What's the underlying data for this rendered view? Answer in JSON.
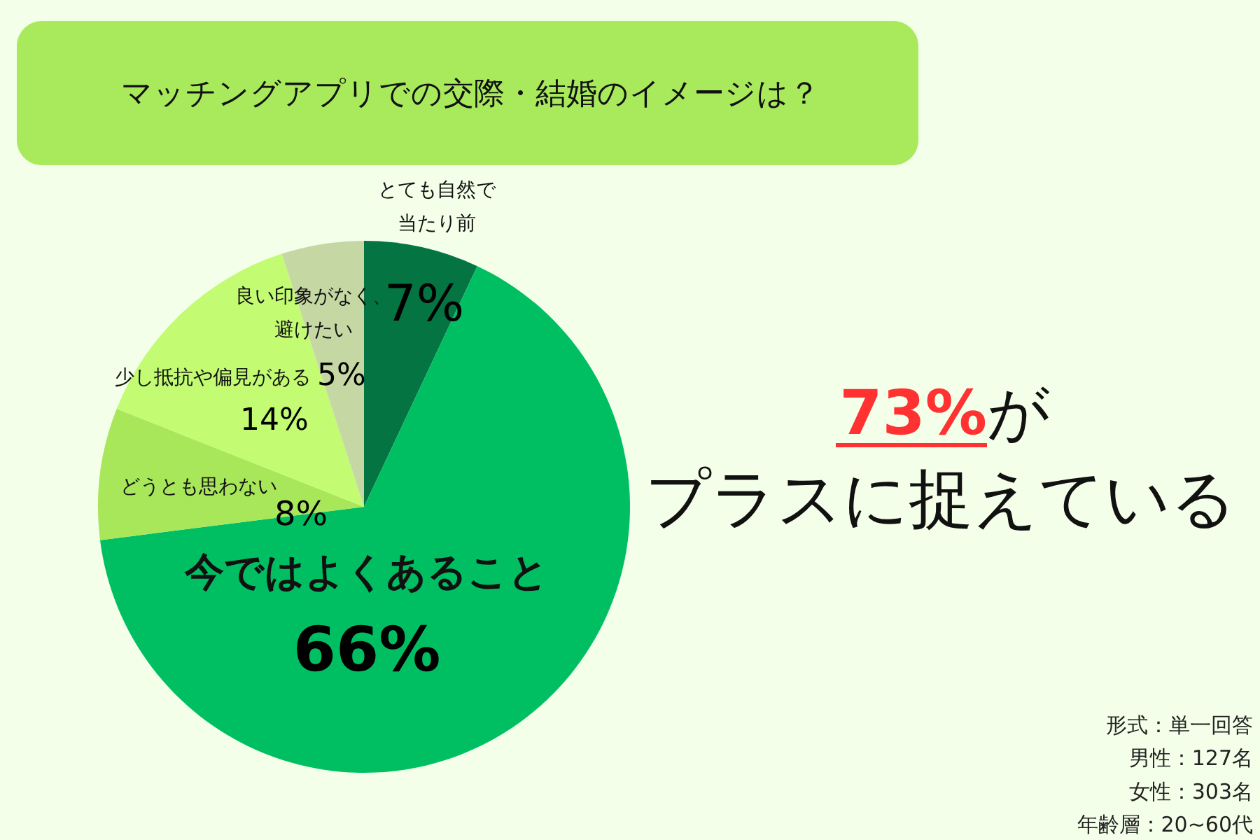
{
  "chart_data": {
    "type": "pie",
    "title": "マッチングアプリでの交際・結婚のイメージは？",
    "categories": [
      "とても自然で当たり前",
      "今ではよくあること",
      "どうとも思わない",
      "少し抵抗や偏見がある",
      "良い印象がなく、避けたい"
    ],
    "values": [
      7,
      66,
      8,
      14,
      5
    ],
    "value_labels": [
      "7%",
      "66%",
      "8%",
      "14%",
      "5%"
    ],
    "colors": [
      "#047443",
      "#00bf63",
      "#a8e65a",
      "#c3fb73",
      "#c5d8a4"
    ],
    "annotations": [
      "73%が",
      "プラスに捉えている",
      "形式：単一回答",
      "男性：127名",
      "女性：303名",
      "年齢層：20~60代"
    ]
  }
}
